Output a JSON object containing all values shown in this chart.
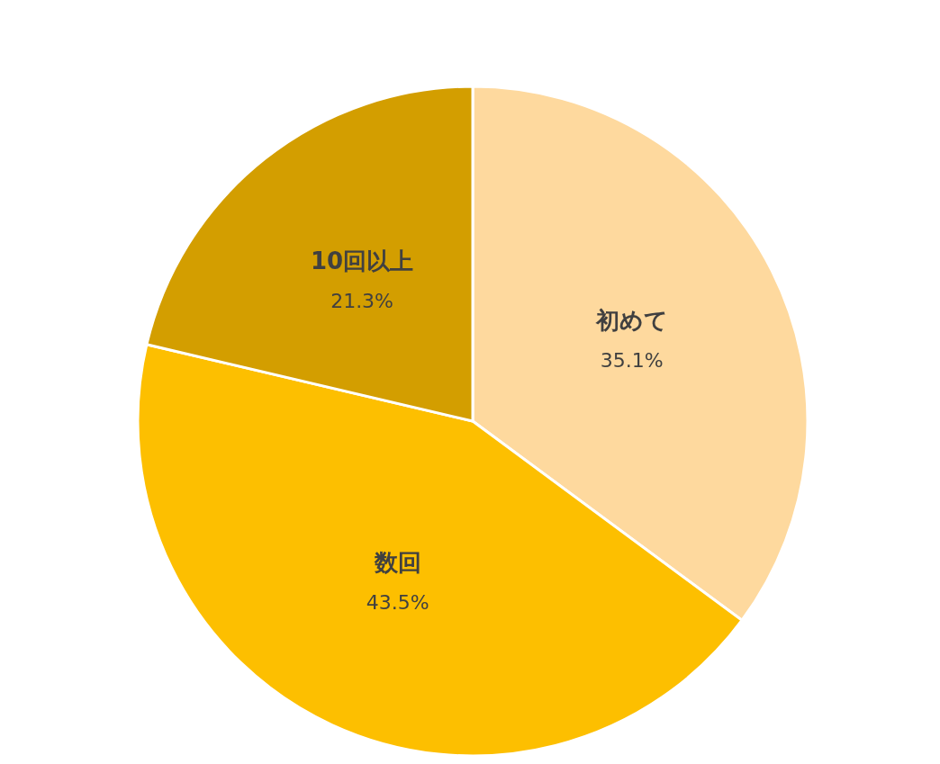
{
  "chart_data": {
    "type": "pie",
    "categories": [
      "初めて",
      "数回",
      "10回以上"
    ],
    "values": [
      35.1,
      43.5,
      21.3
    ],
    "value_labels": [
      "35.1%",
      "43.5%",
      "21.3%"
    ],
    "colors": [
      "#fed99e",
      "#fdbf00",
      "#d39e00"
    ]
  }
}
